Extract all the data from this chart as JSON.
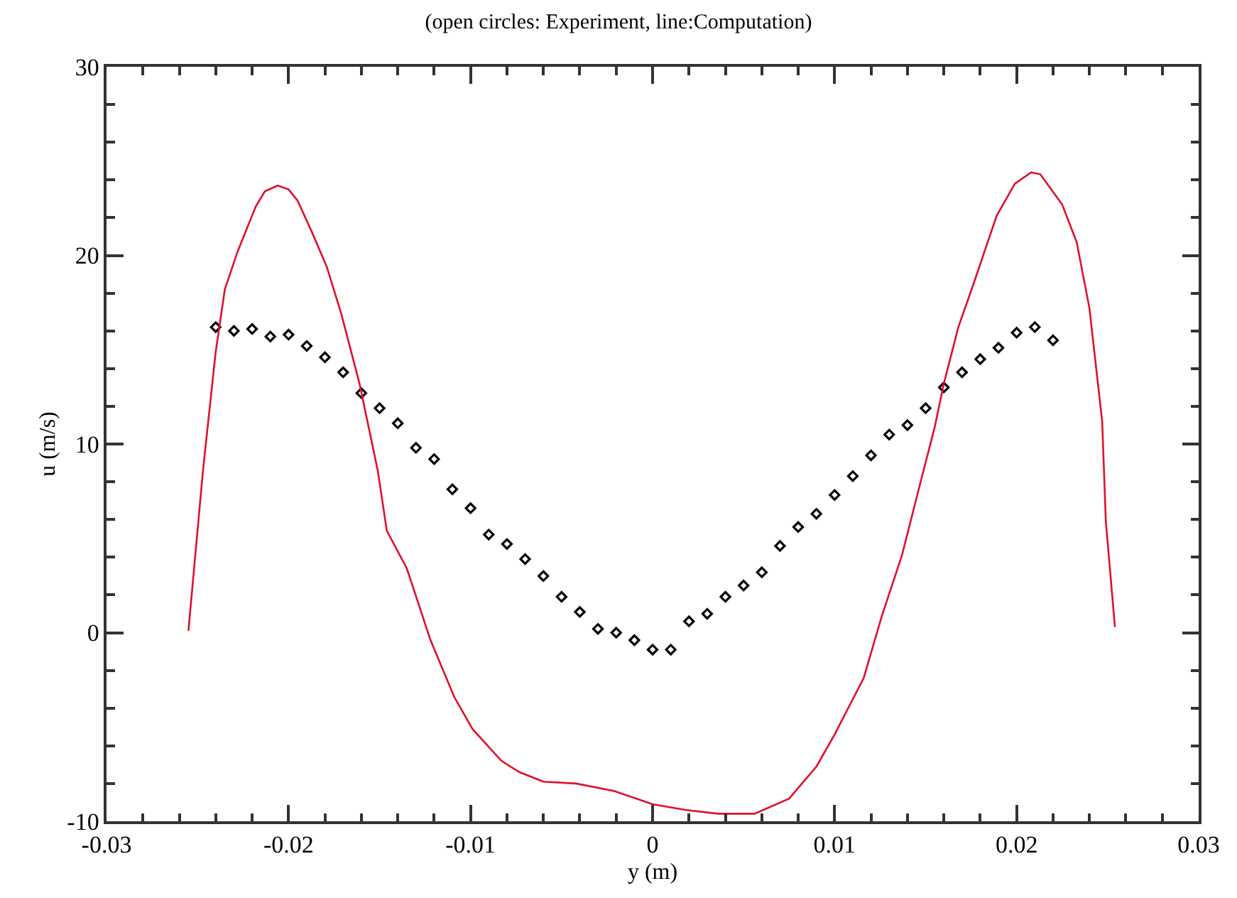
{
  "chart_data": {
    "type": "scatter",
    "title": "(open circles: Experiment, line:Computation)",
    "xlabel": "y (m)",
    "ylabel": "u (m/s)",
    "xlim": [
      -0.03,
      0.03
    ],
    "xticks": [
      -0.03,
      -0.02,
      -0.01,
      0,
      0.01,
      0.02,
      0.03
    ],
    "ylim": [
      -10,
      30
    ],
    "yticks": [
      -10,
      0,
      10,
      20,
      30
    ],
    "grid": false,
    "series": [
      {
        "marker": "diamond",
        "color": "#000000",
        "x": [
          -0.024,
          -0.023,
          -0.022,
          -0.021,
          -0.02,
          -0.019,
          -0.018,
          -0.017,
          -0.016,
          -0.015,
          -0.014,
          -0.013,
          -0.012,
          -0.011,
          -0.01,
          -0.009,
          -0.008,
          -0.007,
          -0.006,
          -0.005,
          -0.004,
          -0.003,
          -0.002,
          -0.001,
          0.0,
          0.001,
          0.002,
          0.003,
          0.004,
          0.005,
          0.006,
          0.007,
          0.008,
          0.009,
          0.01,
          0.011,
          0.012,
          0.013,
          0.014,
          0.015,
          0.016,
          0.017,
          0.018,
          0.019,
          0.02,
          0.021,
          0.022
        ],
        "values": [
          16.2,
          16.0,
          16.1,
          15.7,
          15.8,
          15.2,
          14.6,
          13.8,
          12.7,
          11.9,
          11.1,
          9.8,
          9.2,
          7.6,
          6.6,
          5.2,
          4.7,
          3.9,
          3.0,
          1.9,
          1.1,
          0.2,
          0.0,
          -0.4,
          -0.9,
          -0.9,
          0.6,
          1.0,
          1.9,
          2.5,
          3.2,
          4.6,
          5.6,
          6.3,
          7.3,
          8.3,
          9.4,
          10.5,
          11.0,
          11.9,
          13.0,
          13.8,
          14.5,
          15.1,
          15.9,
          16.2,
          15.5
        ]
      },
      {
        "type": "line",
        "marker": "none",
        "line_style": "solid",
        "color": "#e0102a",
        "x": [
          -0.0255,
          -0.0247,
          -0.024,
          -0.0235,
          -0.0228,
          -0.0218,
          -0.0213,
          -0.0206,
          -0.02,
          -0.0195,
          -0.0187,
          -0.0179,
          -0.0171,
          -0.0161,
          -0.0151,
          -0.0146,
          -0.0135,
          -0.0122,
          -0.0109,
          -0.0099,
          -0.0083,
          -0.0073,
          -0.006,
          -0.0042,
          -0.0021,
          0.0,
          0.0018,
          0.0036,
          0.0056,
          0.0075,
          0.009,
          0.01,
          0.0116,
          0.0126,
          0.0137,
          0.0147,
          0.0155,
          0.016,
          0.0168,
          0.0176,
          0.0189,
          0.0199,
          0.0208,
          0.0213,
          0.0225,
          0.0233,
          0.024,
          0.0247,
          0.0249,
          0.0254
        ],
        "values": [
          0.1,
          8.6,
          14.9,
          18.2,
          20.2,
          22.6,
          23.4,
          23.7,
          23.5,
          22.9,
          21.2,
          19.4,
          16.9,
          13.2,
          8.6,
          5.4,
          3.4,
          -0.4,
          -3.4,
          -5.1,
          -6.8,
          -7.4,
          -7.9,
          -8.0,
          -8.4,
          -9.1,
          -9.4,
          -9.6,
          -9.6,
          -8.8,
          -7.1,
          -5.4,
          -2.4,
          0.9,
          4.1,
          7.9,
          10.9,
          13.2,
          16.2,
          18.4,
          22.1,
          23.8,
          24.4,
          24.3,
          22.7,
          20.7,
          17.2,
          11.2,
          5.9,
          0.3
        ]
      }
    ]
  }
}
